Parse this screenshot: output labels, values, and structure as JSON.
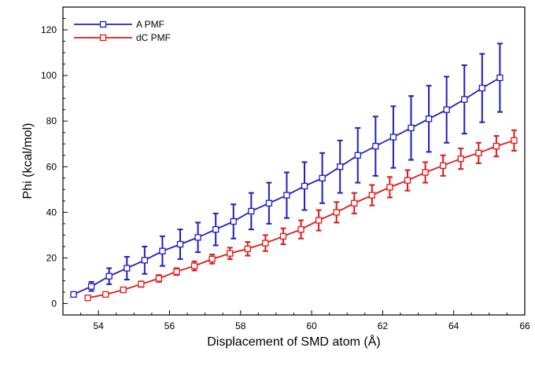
{
  "chart_data": {
    "type": "line",
    "xlabel": "Displacement of SMD atom (Å)",
    "ylabel": "Phi (kcal/mol)",
    "xlim": [
      53,
      66
    ],
    "ylim": [
      -5,
      130
    ],
    "xticks": [
      54,
      56,
      58,
      60,
      62,
      64,
      66
    ],
    "yticks": [
      0,
      20,
      40,
      60,
      80,
      100,
      120
    ],
    "grid": false,
    "legend_position": "top-left",
    "series": [
      {
        "name": "A PMF",
        "color": "#1f1fbf",
        "marker": "open-square",
        "x": [
          53.3,
          53.8,
          54.3,
          54.8,
          55.3,
          55.8,
          56.3,
          56.8,
          57.3,
          57.8,
          58.3,
          58.8,
          59.3,
          59.8,
          60.3,
          60.8,
          61.3,
          61.8,
          62.3,
          62.8,
          63.3,
          63.8,
          64.3,
          64.8,
          65.3
        ],
        "y": [
          4,
          7.5,
          12,
          15.5,
          19,
          23,
          26,
          29,
          32.5,
          36,
          40.5,
          44,
          47.5,
          51.5,
          55,
          60,
          65,
          69,
          73,
          77,
          81,
          85,
          89.5,
          94.5,
          99
        ],
        "err": [
          1,
          2,
          3.5,
          5,
          6,
          6.5,
          6.5,
          6.5,
          7,
          7.5,
          8,
          9,
          10,
          10.5,
          11,
          11.5,
          12,
          13,
          13.5,
          14,
          14.5,
          14.5,
          15,
          15,
          15
        ]
      },
      {
        "name": "dC PMF",
        "color": "#e01818",
        "marker": "open-square",
        "x": [
          53.7,
          54.2,
          54.7,
          55.2,
          55.7,
          56.2,
          56.7,
          57.2,
          57.7,
          58.2,
          58.7,
          59.2,
          59.7,
          60.2,
          60.7,
          61.2,
          61.7,
          62.2,
          62.7,
          63.2,
          63.7,
          64.2,
          64.7,
          65.2,
          65.7
        ],
        "y": [
          2.5,
          4,
          6,
          8.5,
          11,
          14,
          16.5,
          19.5,
          22,
          24,
          26.5,
          29.5,
          32.5,
          36.5,
          40,
          44,
          47.5,
          51,
          54,
          57.5,
          60.5,
          63.5,
          66,
          69,
          71.5
        ],
        "err": [
          0.5,
          1,
          1,
          1.2,
          1.5,
          1.5,
          2,
          2,
          2.5,
          3,
          3.5,
          3.5,
          4,
          4.5,
          4.5,
          4.5,
          4.5,
          4.5,
          4.5,
          4.5,
          4.5,
          4.5,
          4.5,
          4.5,
          4.5
        ]
      }
    ]
  }
}
